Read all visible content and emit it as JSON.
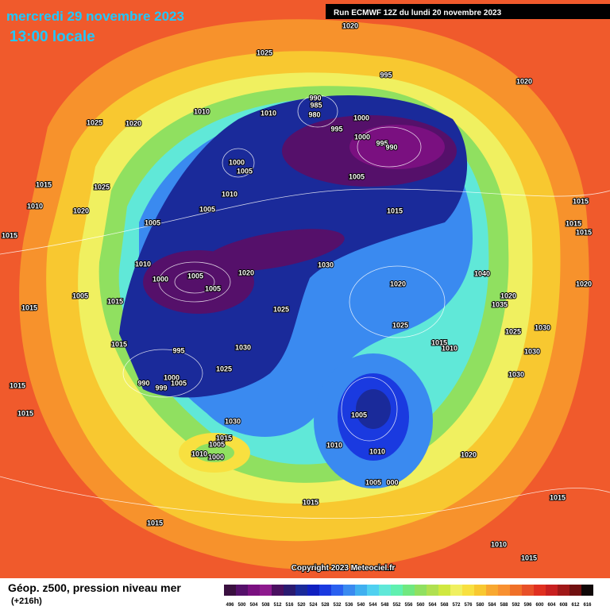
{
  "header": {
    "date": "mercredi 29 novembre 2023",
    "time": "13:00 locale",
    "run": "Run ECMWF 12Z du lundi 20 novembre 2023"
  },
  "copyright": "Copyright 2023 Meteociel.fr",
  "footer": {
    "title": "Géop. z500, pression niveau mer",
    "lead": "(+216h)"
  },
  "colorbar": {
    "labels": [
      "496",
      "500",
      "504",
      "508",
      "512",
      "516",
      "520",
      "524",
      "528",
      "532",
      "536",
      "540",
      "544",
      "548",
      "552",
      "556",
      "560",
      "564",
      "568",
      "572",
      "576",
      "580",
      "584",
      "588",
      "592",
      "596",
      "600",
      "604",
      "608",
      "612",
      "616"
    ],
    "colors": [
      "#3a1040",
      "#55106a",
      "#7a1080",
      "#8e1a8e",
      "#4a1060",
      "#2a1a70",
      "#1a2a9a",
      "#1020c0",
      "#1a3ae0",
      "#2a60f0",
      "#3a8af0",
      "#40b0f0",
      "#50d0f0",
      "#60e8d8",
      "#60f0b0",
      "#70e880",
      "#90e060",
      "#b0e050",
      "#d0e840",
      "#f0f060",
      "#f8e040",
      "#f8c830",
      "#f8a830",
      "#f89030",
      "#f07028",
      "#e85028",
      "#e03020",
      "#c82020",
      "#a01818",
      "#701010",
      "#100808"
    ]
  },
  "isobar_labels": [
    "1020",
    "1025",
    "995",
    "1020",
    "1025",
    "1020",
    "1010",
    "1010",
    "990",
    "985",
    "980",
    "1000",
    "995",
    "1000",
    "995",
    "990",
    "1000",
    "1005",
    "1005",
    "1015",
    "1025",
    "1010",
    "1020",
    "1010",
    "1005",
    "1015",
    "1005",
    "1015",
    "1015",
    "1015",
    "1015",
    "1010",
    "1000",
    "1005",
    "1005",
    "1020",
    "1030",
    "1040",
    "1020",
    "1020",
    "1015",
    "1005",
    "1015",
    "1025",
    "1020",
    "1035",
    "1025",
    "1025",
    "1030",
    "1015",
    "1010",
    "1015",
    "995",
    "1030",
    "1030",
    "1025",
    "1000",
    "1005",
    "990",
    "999",
    "1030",
    "1015",
    "1015",
    "1005",
    "1030",
    "1015",
    "1005",
    "1010",
    "1000",
    "1010",
    "1010",
    "1020",
    "1005",
    "000",
    "1015",
    "1015",
    "1015",
    "1010",
    "1015"
  ]
}
